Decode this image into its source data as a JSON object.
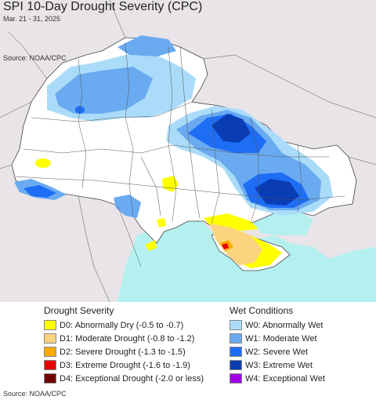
{
  "header": {
    "title": "SPI 10-Day Drought Severity (CPC)",
    "date_range": "Mar. 21 - 31, 2025",
    "source_top": "Source: NOAA/CPC"
  },
  "legend": {
    "drought_title": "Drought Severity",
    "wet_title": "Wet Conditions",
    "drought_items": [
      {
        "label": "D0: Abnormally Dry (-0.5 to -0.7)",
        "color": "#ffff00"
      },
      {
        "label": "D1: Moderate Drought (-0.8 to -1.2)",
        "color": "#fcd37f"
      },
      {
        "label": "D2: Severe Drought (-1.3 to -1.5)",
        "color": "#ffaa00"
      },
      {
        "label": "D3: Extreme Drought (-1.6 to -1.9)",
        "color": "#e60000"
      },
      {
        "label": "D4: Exceptional Drought (-2.0 or less)",
        "color": "#730000"
      }
    ],
    "wet_items": [
      {
        "label": "W0: Abnormally Wet",
        "color": "#aadcfa"
      },
      {
        "label": "W1: Moderate Wet",
        "color": "#6aaaf0"
      },
      {
        "label": "W2: Severe Wet",
        "color": "#1e6ef5"
      },
      {
        "label": "W3: Extreme Wet",
        "color": "#0a3cb4"
      },
      {
        "label": "W4: Exceptional Wet",
        "color": "#a000e6"
      }
    ]
  },
  "footer": {
    "source": "Source: NOAA/CPC"
  }
}
